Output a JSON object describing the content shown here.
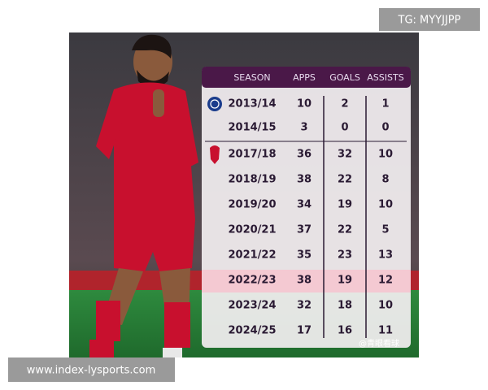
{
  "watermark_top": "TG: MYYJJPP",
  "watermark_bottom": "www.index-lysports.com",
  "credit": "@青眼看球",
  "table": {
    "header": [
      "SEASON",
      "APPS",
      "GOALS",
      "ASSISTS"
    ],
    "rows": [
      [
        "2013/14",
        10,
        2,
        1
      ],
      [
        "2014/15",
        3,
        0,
        0
      ],
      [
        "2017/18",
        36,
        32,
        10
      ],
      [
        "2018/19",
        38,
        22,
        8
      ],
      [
        "2019/20",
        34,
        19,
        10
      ],
      [
        "2020/21",
        37,
        22,
        5
      ],
      [
        "2021/22",
        35,
        23,
        13
      ],
      [
        "2022/23",
        38,
        19,
        12
      ],
      [
        "2023/24",
        32,
        18,
        10
      ],
      [
        "2024/25",
        17,
        16,
        11
      ]
    ]
  }
}
